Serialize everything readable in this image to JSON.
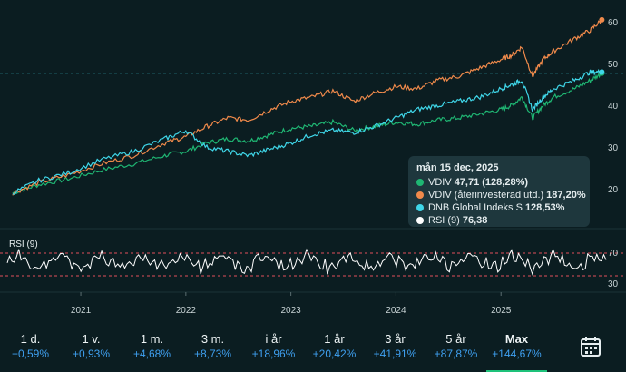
{
  "colors": {
    "vdiv": "#1fb673",
    "reinvested": "#f08a4b",
    "dnb": "#3fd6e8",
    "rsi": "#ffffff",
    "rsi_band": "#e0505a",
    "accent": "#3fa0f0",
    "active_underline": "#1ec27a"
  },
  "tooltip": {
    "date": "mån 15 dec, 2025",
    "rows": [
      {
        "name": "VDIV",
        "value": "47,71 (128,28%)",
        "color": "#1fb673"
      },
      {
        "name": "VDIV (återinvesterad utd.)",
        "value": "187,20%",
        "color": "#f08a4b"
      },
      {
        "name": "DNB Global Indeks S",
        "value": "128,53%",
        "color": "#3fd6e8"
      },
      {
        "name": "RSI (9)",
        "value": "76,38",
        "color": "#ffffff"
      }
    ]
  },
  "rsi_label": "RSI (9)",
  "periods": [
    {
      "label": "1 d.",
      "change": "+0,59%"
    },
    {
      "label": "1 v.",
      "change": "+0,93%"
    },
    {
      "label": "1 m.",
      "change": "+4,68%"
    },
    {
      "label": "3 m.",
      "change": "+8,73%"
    },
    {
      "label": "i år",
      "change": "+18,96%"
    },
    {
      "label": "1 år",
      "change": "+20,42%"
    },
    {
      "label": "3 år",
      "change": "+41,91%"
    },
    {
      "label": "5 år",
      "change": "+87,87%"
    },
    {
      "label": "Max",
      "change": "+144,67%",
      "active": true
    }
  ],
  "calendar_icon": "calendar-icon",
  "chart_data": {
    "type": "line",
    "x_ticks": [
      "2021",
      "2022",
      "2023",
      "2024",
      "2025"
    ],
    "y_ticks": [
      20,
      30,
      40,
      50,
      60
    ],
    "ylim": [
      17,
      62
    ],
    "xlim": [
      2020.3,
      2026.0
    ],
    "current_value_marker": 47.71,
    "series": [
      {
        "name": "VDIV",
        "color": "#1fb673",
        "x": [
          2020.35,
          2020.6,
          2020.9,
          2021.2,
          2021.5,
          2021.8,
          2022.0,
          2022.2,
          2022.4,
          2022.6,
          2022.8,
          2023.0,
          2023.2,
          2023.4,
          2023.6,
          2023.8,
          2024.0,
          2024.2,
          2024.4,
          2024.6,
          2024.8,
          2025.0,
          2025.1,
          2025.2,
          2025.3,
          2025.4,
          2025.5,
          2025.7,
          2025.85,
          2025.96
        ],
        "values": [
          19,
          21,
          22.5,
          24.5,
          26,
          28,
          29,
          31,
          32,
          31.5,
          33,
          34.5,
          35,
          36,
          34,
          35,
          36,
          35.5,
          36.5,
          37,
          38,
          39,
          40,
          42,
          37,
          40,
          42,
          44,
          46,
          47.71
        ]
      },
      {
        "name": "VDIV (återinvesterad utd.)",
        "color": "#f08a4b",
        "x": [
          2020.35,
          2020.6,
          2020.9,
          2021.2,
          2021.5,
          2021.8,
          2022.0,
          2022.2,
          2022.4,
          2022.6,
          2022.8,
          2023.0,
          2023.2,
          2023.4,
          2023.6,
          2023.8,
          2024.0,
          2024.2,
          2024.4,
          2024.6,
          2024.8,
          2025.0,
          2025.1,
          2025.2,
          2025.3,
          2025.4,
          2025.5,
          2025.7,
          2025.85,
          2025.96
        ],
        "values": [
          19,
          21.5,
          23.5,
          26,
          28,
          31,
          32.5,
          35,
          37,
          36.5,
          39,
          41,
          42,
          43.5,
          41,
          43,
          44.5,
          44,
          46,
          47,
          49,
          51,
          52,
          54,
          47,
          51,
          53,
          56,
          58,
          60.5
        ]
      },
      {
        "name": "DNB Global Indeks S",
        "color": "#3fd6e8",
        "x": [
          2020.35,
          2020.6,
          2020.9,
          2021.2,
          2021.5,
          2021.8,
          2022.0,
          2022.2,
          2022.4,
          2022.6,
          2022.8,
          2023.0,
          2023.2,
          2023.4,
          2023.6,
          2023.8,
          2024.0,
          2024.2,
          2024.4,
          2024.6,
          2024.8,
          2025.0,
          2025.1,
          2025.2,
          2025.3,
          2025.4,
          2025.5,
          2025.7,
          2025.85,
          2025.96
        ],
        "values": [
          19,
          22,
          24,
          27,
          29,
          32,
          34,
          30,
          29,
          28,
          29.5,
          31,
          33,
          34,
          33.5,
          35,
          37,
          39,
          40,
          41,
          42,
          44,
          45,
          46,
          39,
          42,
          44,
          46,
          48,
          48
        ]
      }
    ],
    "rsi": {
      "name": "RSI (9)",
      "color": "#ffffff",
      "upper": 70,
      "lower": 30,
      "last": 76.38
    }
  }
}
